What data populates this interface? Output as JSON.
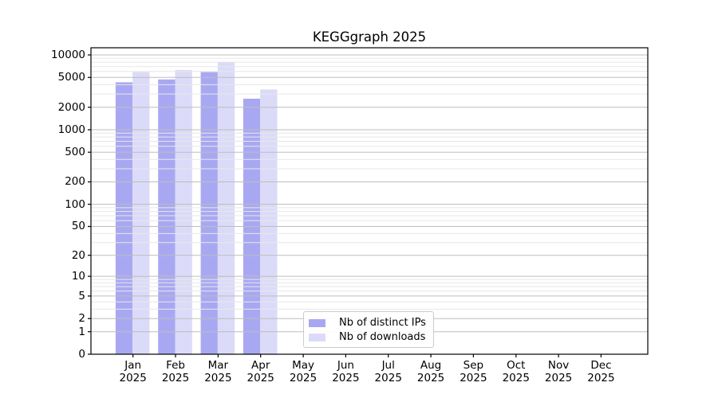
{
  "title": "KEGGgraph 2025",
  "chart_data": {
    "type": "bar",
    "title": "KEGGgraph 2025",
    "categories": [
      "Jan",
      "Feb",
      "Mar",
      "Apr",
      "May",
      "Jun",
      "Jul",
      "Aug",
      "Sep",
      "Oct",
      "Nov",
      "Dec"
    ],
    "category_year": "2025",
    "series": [
      {
        "name": "Nb of distinct IPs",
        "color": "#a8a8f2",
        "values": [
          4300,
          4700,
          5900,
          2600,
          null,
          null,
          null,
          null,
          null,
          null,
          null,
          null
        ]
      },
      {
        "name": "Nb of downloads",
        "color": "#dbdbf9",
        "values": [
          5900,
          6300,
          8100,
          3450,
          null,
          null,
          null,
          null,
          null,
          null,
          null,
          null
        ]
      }
    ],
    "yscale": "log1p",
    "yticks": [
      0,
      1,
      2,
      5,
      10,
      20,
      50,
      100,
      200,
      500,
      1000,
      2000,
      5000,
      10000
    ],
    "ylim": [
      0,
      12400
    ],
    "xlabel": "",
    "ylabel": "",
    "grid": true,
    "legend_position": "lower center inside plot",
    "colors": {
      "major_grid": "#bdbdbd",
      "minor_grid": "#e7e7e7",
      "axis": "#000000"
    }
  }
}
